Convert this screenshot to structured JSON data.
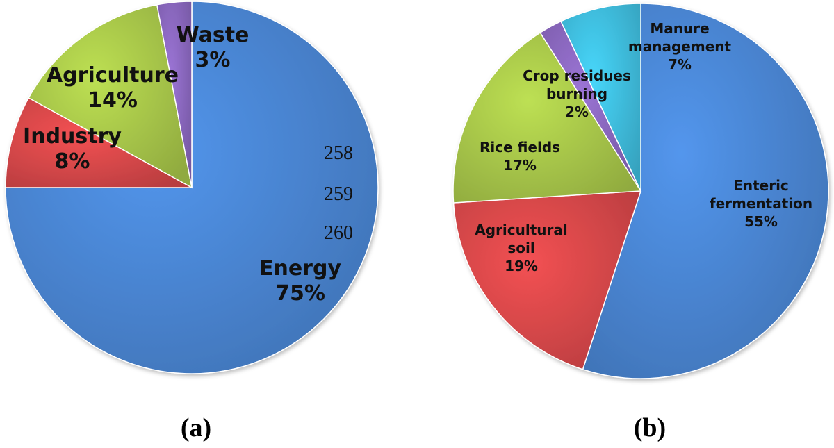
{
  "chart_data": [
    {
      "type": "pie",
      "panel_label": "(a)",
      "slices": [
        {
          "label": "Energy",
          "value": 75,
          "value_label": "75%",
          "color": "#4a86d4"
        },
        {
          "label": "Industry",
          "value": 8,
          "value_label": "8%",
          "color": "#d9484a"
        },
        {
          "label": "Agriculture",
          "value": 14,
          "value_label": "14%",
          "color": "#a9c84a"
        },
        {
          "label": "Waste",
          "value": 3,
          "value_label": "3%",
          "color": "#8a68be"
        }
      ],
      "annotations": [
        "258",
        "259",
        "260"
      ]
    },
    {
      "type": "pie",
      "panel_label": "(b)",
      "slices": [
        {
          "label": "Enteric fermentation",
          "label_lines": [
            "Enteric",
            "fermentation"
          ],
          "value": 55,
          "value_label": "55%",
          "color": "#4a86d4"
        },
        {
          "label": "Agricultural soil",
          "label_lines": [
            "Agricultural",
            "soil"
          ],
          "value": 19,
          "value_label": "19%",
          "color": "#d9484a"
        },
        {
          "label": "Rice fields",
          "label_lines": [
            "Rice fields"
          ],
          "value": 17,
          "value_label": "17%",
          "color": "#a9c84a"
        },
        {
          "label": "Crop residues burning",
          "label_lines": [
            "Crop residues",
            "burning"
          ],
          "value": 2,
          "value_label": "2%",
          "color": "#8a68be"
        },
        {
          "label": "Manure management",
          "label_lines": [
            "Manure",
            "management"
          ],
          "value": 7,
          "value_label": "7%",
          "color": "#3fbfdf"
        }
      ]
    }
  ]
}
